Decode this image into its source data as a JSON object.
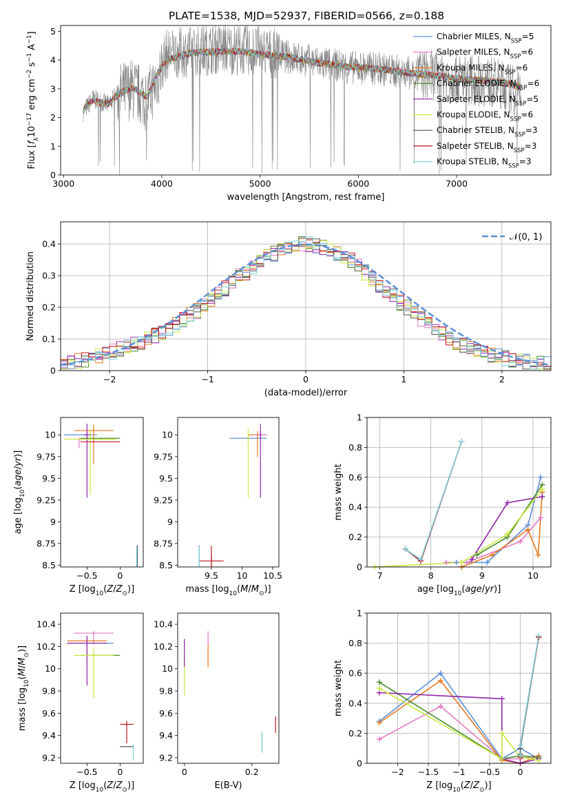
{
  "figure_title": "PLATE=1538, MJD=52937, FIBERID=0566, z=0.188",
  "colors": {
    "chabrier_miles": "#5b8fd8",
    "salpeter_miles": "#e377c2",
    "kroupa_miles": "#e8761c",
    "chabrier_elodie": "#4a8a2a",
    "salpeter_elodie": "#8e24aa",
    "kroupa_elodie": "#c6e83a",
    "chabrier_stelib": "#555555",
    "salpeter_stelib": "#c0141c",
    "kroupa_stelib": "#7fd6df",
    "data": "#808080",
    "normal_curve": "#5b8fd8"
  },
  "chart_data": [
    {
      "id": "spectrum",
      "type": "line",
      "title": "PLATE=1538, MJD=52937, FIBERID=0566, z=0.188",
      "xlabel": "wavelength [Angstrom, rest frame]",
      "ylabel": "Flux [f_λ 10^-17 erg cm^-2 s^-1 A^-1]",
      "xlim": [
        2970,
        7960
      ],
      "ylim": [
        0,
        5.2
      ],
      "xticks": [
        3000,
        4000,
        5000,
        6000,
        7000
      ],
      "yticks": [
        0,
        1,
        2,
        3,
        4,
        5
      ],
      "grid": false,
      "legend_position": "top-right",
      "legend": [
        {
          "label": "Chabrier MILES, N",
          "sub": "SSP",
          "tail": "=5"
        },
        {
          "label": "Salpeter MILES, N",
          "sub": "SSP",
          "tail": "=6"
        },
        {
          "label": "Kroupa MILES, N",
          "sub": "SSP",
          "tail": "=6"
        },
        {
          "label": "Chabrier ELODIE, N",
          "sub": "SSP",
          "tail": "=6"
        },
        {
          "label": "Salpeter ELODIE, N",
          "sub": "SSP",
          "tail": "=5"
        },
        {
          "label": "Kroupa ELODIE, N",
          "sub": "SSP",
          "tail": "=6"
        },
        {
          "label": "Chabrier STELIB, N",
          "sub": "SSP",
          "tail": "=3"
        },
        {
          "label": "Salpeter STELIB, N",
          "sub": "SSP",
          "tail": "=3"
        },
        {
          "label": "Kroupa STELIB, N",
          "sub": "SSP",
          "tail": "=3"
        }
      ],
      "data_continuum": [
        [
          3200,
          2.2
        ],
        [
          3300,
          2.65
        ],
        [
          3450,
          2.45
        ],
        [
          3550,
          2.8
        ],
        [
          3700,
          3.0
        ],
        [
          3850,
          2.6
        ],
        [
          3950,
          3.3
        ],
        [
          4050,
          4.2
        ],
        [
          4300,
          4.3
        ],
        [
          4600,
          4.4
        ],
        [
          4800,
          4.35
        ],
        [
          5000,
          4.3
        ],
        [
          5300,
          4.1
        ],
        [
          5600,
          3.9
        ],
        [
          5900,
          3.75
        ],
        [
          6200,
          3.7
        ],
        [
          6500,
          3.55
        ],
        [
          6800,
          3.45
        ],
        [
          7000,
          3.35
        ],
        [
          7300,
          3.25
        ],
        [
          7500,
          3.1
        ],
        [
          7650,
          2.8
        ]
      ],
      "model_continuum": [
        [
          3200,
          2.25
        ],
        [
          3300,
          2.6
        ],
        [
          3450,
          2.45
        ],
        [
          3550,
          2.8
        ],
        [
          3700,
          3.05
        ],
        [
          3850,
          2.7
        ],
        [
          3950,
          3.5
        ],
        [
          4050,
          4.0
        ],
        [
          4300,
          4.25
        ],
        [
          4600,
          4.3
        ],
        [
          4800,
          4.3
        ],
        [
          5000,
          4.2
        ],
        [
          5300,
          4.1
        ],
        [
          5600,
          3.9
        ],
        [
          5900,
          3.75
        ],
        [
          6200,
          3.7
        ],
        [
          6500,
          3.55
        ],
        [
          6800,
          3.45
        ],
        [
          7000,
          3.35
        ],
        [
          7300,
          3.28
        ],
        [
          7500,
          3.2
        ],
        [
          7660,
          3.05
        ]
      ]
    },
    {
      "id": "residual_histogram",
      "type": "line",
      "xlabel": "(data-model)/error",
      "ylabel": "Normed distribution",
      "xlim": [
        -2.5,
        2.5
      ],
      "ylim": [
        0,
        0.47
      ],
      "xticks": [
        -2,
        -1,
        0,
        1,
        2
      ],
      "yticks": [
        0.0,
        0.1,
        0.2,
        0.3,
        0.4
      ],
      "grid": true,
      "legend_position": "top-right",
      "legend": [
        {
          "label": "𝒩(0, 1)",
          "style": "dashed"
        }
      ],
      "bin_width": 0.1,
      "hist_base": [
        0.02,
        0.025,
        0.03,
        0.035,
        0.04,
        0.045,
        0.05,
        0.06,
        0.07,
        0.075,
        0.085,
        0.09,
        0.1,
        0.11,
        0.12,
        0.13,
        0.145,
        0.16,
        0.175,
        0.19,
        0.205,
        0.22,
        0.24,
        0.26,
        0.28,
        0.3,
        0.31,
        0.33,
        0.345,
        0.36,
        0.37,
        0.38,
        0.39,
        0.395,
        0.4,
        0.4,
        0.395,
        0.39,
        0.38,
        0.37,
        0.36,
        0.35,
        0.33,
        0.31,
        0.29,
        0.27,
        0.25,
        0.235,
        0.215,
        0.2,
        0.18,
        0.165,
        0.15,
        0.135,
        0.12,
        0.105,
        0.09,
        0.08,
        0.07,
        0.06,
        0.055,
        0.05,
        0.045,
        0.04,
        0.035,
        0.03,
        0.028,
        0.025,
        0.022,
        0.02
      ]
    },
    {
      "id": "age_vs_Z",
      "type": "scatter",
      "xlabel": "Z [log10(Z/Z☉)]",
      "ylabel": "age [log10(age/yr)]",
      "xlim": [
        -0.9,
        0.35
      ],
      "ylim": [
        8.48,
        10.2
      ],
      "xticks": [
        -0.5,
        0.0
      ],
      "yticks": [
        8.5,
        8.75,
        9.0,
        9.25,
        9.5,
        9.75,
        10.0
      ],
      "points": [
        {
          "series": "chabrier_miles",
          "x": -0.6,
          "y": 10.0,
          "xerr": 0.25,
          "yerr": 0.0
        },
        {
          "series": "salpeter_miles",
          "x": -0.62,
          "y": 9.95,
          "xerr": 0.1,
          "yerr": 0.12
        },
        {
          "series": "kroupa_miles",
          "x": -0.4,
          "y": 10.05,
          "xerr": 0.3,
          "yerr": 0.45
        },
        {
          "series": "chabrier_elodie",
          "x": -0.3,
          "y": 9.96,
          "xerr": 0.3,
          "yerr": 0.0
        },
        {
          "series": "salpeter_elodie",
          "x": -0.5,
          "y": 10.0,
          "xerr": 0.05,
          "yerr": 0.85
        },
        {
          "series": "kroupa_elodie",
          "x": -0.45,
          "y": 9.95,
          "xerr": 0.4,
          "yerr": 0.75
        },
        {
          "series": "chabrier_stelib",
          "x": 0.26,
          "y": 8.55,
          "xerr": 0.0,
          "yerr": 1.2
        },
        {
          "series": "salpeter_stelib",
          "x": -0.3,
          "y": 9.92,
          "xerr": 0.3,
          "yerr": 0.0
        },
        {
          "series": "kroupa_stelib",
          "x": 0.25,
          "y": 8.55,
          "xerr": 0.0,
          "yerr": 1.15
        }
      ]
    },
    {
      "id": "age_vs_mass",
      "type": "scatter",
      "xlabel": "mass [log10(M/M☉)]",
      "ylabel": "",
      "xlim": [
        8.95,
        10.6
      ],
      "ylim": [
        8.48,
        10.2
      ],
      "xticks": [
        9.5,
        10.0,
        10.5
      ],
      "yticks": [
        8.5,
        8.75,
        9.0,
        9.25,
        9.5,
        9.75,
        10.0
      ],
      "points": [
        {
          "series": "chabrier_miles",
          "x": 10.1,
          "y": 9.96,
          "xerr": 0.3,
          "yerr": 0.0
        },
        {
          "series": "kroupa_miles",
          "x": 10.25,
          "y": 10.0,
          "xerr": 0.15,
          "yerr": 0.3
        },
        {
          "series": "salpeter_miles",
          "x": 10.3,
          "y": 10.0,
          "xerr": 0.1,
          "yerr": 0.0
        },
        {
          "series": "chabrier_elodie",
          "x": 10.1,
          "y": 9.95,
          "xerr": 0.0,
          "yerr": 0.0
        },
        {
          "series": "salpeter_elodie",
          "x": 10.3,
          "y": 10.0,
          "xerr": 0.0,
          "yerr": 0.85
        },
        {
          "series": "kroupa_elodie",
          "x": 10.1,
          "y": 9.95,
          "xerr": 0.0,
          "yerr": 0.8
        },
        {
          "series": "chabrier_stelib",
          "x": 9.3,
          "y": 8.55,
          "xerr": 0.0,
          "yerr": 1.2
        },
        {
          "series": "salpeter_stelib",
          "x": 9.5,
          "y": 8.55,
          "xerr": 0.2,
          "yerr": 1.15
        },
        {
          "series": "kroupa_stelib",
          "x": 9.3,
          "y": 8.55,
          "xerr": 0.0,
          "yerr": 1.15
        }
      ]
    },
    {
      "id": "mass_weight_vs_age",
      "type": "line",
      "xlabel": "age [log10(age/yr)]",
      "ylabel": "mass weight",
      "xlim": [
        6.75,
        10.35
      ],
      "ylim": [
        0.0,
        1.0
      ],
      "xticks": [
        7,
        8,
        9,
        10
      ],
      "yticks": [
        0.0,
        0.2,
        0.4,
        0.6,
        0.8,
        1.0
      ],
      "grid": true,
      "series": [
        {
          "name": "chabrier_miles",
          "points": [
            [
              8.5,
              0.03
            ],
            [
              9.1,
              0.03
            ],
            [
              9.9,
              0.28
            ],
            [
              10.15,
              0.6
            ]
          ]
        },
        {
          "name": "salpeter_miles",
          "points": [
            [
              8.3,
              0.03
            ],
            [
              8.7,
              0.03
            ],
            [
              9.75,
              0.17
            ],
            [
              10.15,
              0.33
            ]
          ]
        },
        {
          "name": "kroupa_miles",
          "points": [
            [
              8.6,
              0.0
            ],
            [
              9.2,
              0.08
            ],
            [
              9.9,
              0.25
            ],
            [
              10.1,
              0.08
            ],
            [
              10.18,
              0.5
            ]
          ]
        },
        {
          "name": "chabrier_elodie",
          "points": [
            [
              8.9,
              0.08
            ],
            [
              9.5,
              0.2
            ],
            [
              10.18,
              0.55
            ]
          ]
        },
        {
          "name": "salpeter_elodie",
          "points": [
            [
              8.8,
              0.05
            ],
            [
              9.5,
              0.43
            ],
            [
              10.18,
              0.47
            ]
          ]
        },
        {
          "name": "kroupa_elodie",
          "points": [
            [
              6.9,
              0.0
            ],
            [
              8.6,
              0.03
            ],
            [
              9.5,
              0.22
            ],
            [
              10.18,
              0.52
            ]
          ]
        },
        {
          "name": "chabrier_stelib",
          "points": [
            [
              7.5,
              0.12
            ],
            [
              7.8,
              0.04
            ],
            [
              8.6,
              0.84
            ]
          ]
        },
        {
          "name": "salpeter_stelib",
          "points": [
            [
              7.5,
              0.12
            ],
            [
              7.8,
              0.04
            ],
            [
              8.6,
              0.84
            ]
          ]
        },
        {
          "name": "kroupa_stelib",
          "points": [
            [
              7.5,
              0.12
            ],
            [
              7.8,
              0.05
            ],
            [
              8.6,
              0.84
            ]
          ]
        }
      ]
    },
    {
      "id": "mass_vs_Z",
      "type": "scatter",
      "xlabel": "Z [log10(Z/Z☉)]",
      "ylabel": "mass [log10(M/M☉)]",
      "xlim": [
        -0.9,
        0.35
      ],
      "ylim": [
        9.15,
        10.5
      ],
      "xticks": [
        -0.5,
        0.0
      ],
      "yticks": [
        9.2,
        9.4,
        9.6,
        9.8,
        10.0,
        10.2,
        10.4
      ],
      "points": [
        {
          "series": "chabrier_miles",
          "x": -0.45,
          "y": 10.23,
          "xerr": 0.35,
          "yerr": 0.0
        },
        {
          "series": "salpeter_miles",
          "x": -0.4,
          "y": 10.32,
          "xerr": 0.3,
          "yerr": 0.12
        },
        {
          "series": "kroupa_miles",
          "x": -0.5,
          "y": 10.25,
          "xerr": 0.3,
          "yerr": 0.27
        },
        {
          "series": "chabrier_elodie",
          "x": -0.3,
          "y": 10.12,
          "xerr": 0.3,
          "yerr": 0.0
        },
        {
          "series": "salpeter_elodie",
          "x": -0.5,
          "y": 10.23,
          "xerr": 0.3,
          "yerr": 0.45
        },
        {
          "series": "kroupa_elodie",
          "x": -0.4,
          "y": 10.12,
          "xerr": 0.3,
          "yerr": 0.45
        },
        {
          "series": "chabrier_stelib",
          "x": 0.1,
          "y": 9.3,
          "xerr": 0.1,
          "yerr": 0.0
        },
        {
          "series": "salpeter_stelib",
          "x": 0.1,
          "y": 9.5,
          "xerr": 0.1,
          "yerr": 0.2
        },
        {
          "series": "kroupa_stelib",
          "x": 0.2,
          "y": 9.3,
          "xerr": 0.0,
          "yerr": 0.15
        }
      ]
    },
    {
      "id": "mass_vs_ebv",
      "type": "scatter",
      "xlabel": "E(B-V)",
      "ylabel": "",
      "xlim": [
        -0.02,
        0.28
      ],
      "ylim": [
        9.15,
        10.5
      ],
      "xticks": [
        0.0,
        0.2
      ],
      "yticks": [
        9.2,
        9.4,
        9.6,
        9.8,
        10.0,
        10.2,
        10.4
      ],
      "points": [
        {
          "series": "kroupa_elodie",
          "x": 0.0,
          "y": 10.1,
          "xerr": 0.0,
          "yerr": 0.4
        },
        {
          "series": "salpeter_elodie",
          "x": 0.0,
          "y": 10.23,
          "xerr": 0.0,
          "yerr": 0.25
        },
        {
          "series": "kroupa_miles",
          "x": 0.07,
          "y": 10.2,
          "xerr": 0.0,
          "yerr": 0.22
        },
        {
          "series": "salpeter_miles",
          "x": 0.07,
          "y": 10.32,
          "xerr": 0.0,
          "yerr": 0.12
        },
        {
          "series": "chabrier_stelib",
          "x": 0.23,
          "y": 9.4,
          "xerr": 0.0,
          "yerr": 0.18
        },
        {
          "series": "kroupa_stelib",
          "x": 0.23,
          "y": 9.4,
          "xerr": 0.0,
          "yerr": 0.18
        },
        {
          "series": "salpeter_stelib",
          "x": 0.27,
          "y": 9.55,
          "xerr": 0.0,
          "yerr": 0.15
        }
      ]
    },
    {
      "id": "mass_weight_vs_Z",
      "type": "line",
      "xlabel": "Z [log10(Z/Z☉)]",
      "ylabel": "mass weight",
      "xlim": [
        -2.5,
        0.5
      ],
      "ylim": [
        0.0,
        1.0
      ],
      "xticks": [
        -2.0,
        -1.5,
        -1.0,
        -0.5,
        0.0
      ],
      "yticks": [
        0.0,
        0.2,
        0.4,
        0.6,
        0.8,
        1.0
      ],
      "grid": true,
      "series": [
        {
          "name": "chabrier_miles",
          "points": [
            [
              -2.3,
              0.28
            ],
            [
              -1.3,
              0.6
            ],
            [
              -0.3,
              0.03
            ],
            [
              0.0,
              0.1
            ],
            [
              0.3,
              0.03
            ]
          ]
        },
        {
          "name": "salpeter_miles",
          "points": [
            [
              -2.3,
              0.16
            ],
            [
              -1.3,
              0.38
            ],
            [
              -0.3,
              0.03
            ],
            [
              0.0,
              0.03
            ],
            [
              0.3,
              0.05
            ]
          ]
        },
        {
          "name": "kroupa_miles",
          "points": [
            [
              -2.3,
              0.27
            ],
            [
              -1.3,
              0.55
            ],
            [
              -0.3,
              0.02
            ],
            [
              0.0,
              0.0
            ],
            [
              0.3,
              0.05
            ]
          ]
        },
        {
          "name": "chabrier_elodie",
          "points": [
            [
              -2.3,
              0.54
            ],
            [
              -0.3,
              0.03
            ],
            [
              0.0,
              0.05
            ],
            [
              0.3,
              0.04
            ]
          ]
        },
        {
          "name": "salpeter_elodie",
          "points": [
            [
              -2.3,
              0.47
            ],
            [
              -0.3,
              0.43
            ],
            [
              -0.3,
              0.03
            ],
            [
              0.0,
              0.0
            ],
            [
              0.3,
              0.03
            ]
          ]
        },
        {
          "name": "kroupa_elodie",
          "points": [
            [
              -2.3,
              0.5
            ],
            [
              -0.3,
              0.03
            ],
            [
              -0.3,
              0.2
            ],
            [
              0.0,
              0.04
            ],
            [
              0.3,
              0.02
            ]
          ]
        },
        {
          "name": "chabrier_stelib",
          "points": [
            [
              -0.0,
              0.06
            ],
            [
              0.0,
              0.1
            ],
            [
              0.3,
              0.84
            ]
          ]
        },
        {
          "name": "salpeter_stelib",
          "points": [
            [
              0.0,
              0.04
            ],
            [
              0.0,
              0.12
            ],
            [
              0.3,
              0.84
            ]
          ]
        },
        {
          "name": "kroupa_stelib",
          "points": [
            [
              0.0,
              0.05
            ],
            [
              0.0,
              0.12
            ],
            [
              0.3,
              0.85
            ]
          ]
        }
      ]
    }
  ]
}
